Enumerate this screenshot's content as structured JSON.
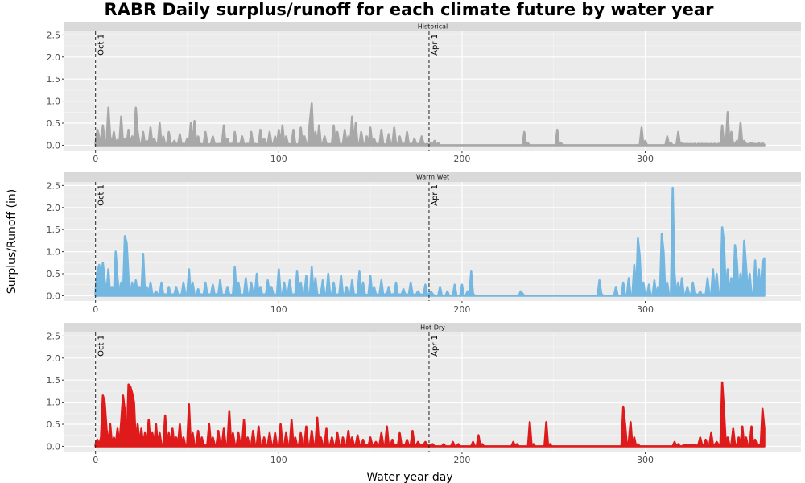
{
  "chart_data": {
    "type": "area",
    "title": "RABR Daily surplus/runoff for each climate future by water year",
    "xlabel": "Water year day",
    "ylabel": "Surplus/Runoff (in)",
    "xlim": [
      -17,
      385
    ],
    "ylim": [
      -0.12,
      2.58
    ],
    "xticks": [
      0,
      100,
      200,
      300
    ],
    "yticks": [
      0.0,
      0.5,
      1.0,
      1.5,
      2.0,
      2.5
    ],
    "ytick_labels": [
      "0.0",
      "0.5",
      "1.0",
      "1.5",
      "2.0",
      "2.5"
    ],
    "grid": true,
    "vlines": [
      {
        "x": 0,
        "label": "Oct 1"
      },
      {
        "x": 182,
        "label": "Apr 1"
      }
    ],
    "panels": [
      {
        "name": "Historical",
        "color": "#a8a8a8",
        "peaks": [
          [
            0,
            0.05
          ],
          [
            1,
            0.35
          ],
          [
            2,
            0.2
          ],
          [
            4,
            0.45
          ],
          [
            5,
            0.1
          ],
          [
            7,
            0.85
          ],
          [
            8,
            0.2
          ],
          [
            10,
            0.3
          ],
          [
            12,
            0.12
          ],
          [
            14,
            0.65
          ],
          [
            16,
            0.15
          ],
          [
            18,
            0.35
          ],
          [
            20,
            0.2
          ],
          [
            22,
            0.85
          ],
          [
            23,
            0.3
          ],
          [
            26,
            0.3
          ],
          [
            28,
            0.1
          ],
          [
            30,
            0.4
          ],
          [
            32,
            0.15
          ],
          [
            35,
            0.5
          ],
          [
            37,
            0.2
          ],
          [
            40,
            0.3
          ],
          [
            43,
            0.1
          ],
          [
            46,
            0.25
          ],
          [
            50,
            0.15
          ],
          [
            52,
            0.5
          ],
          [
            54,
            0.55
          ],
          [
            56,
            0.2
          ],
          [
            60,
            0.3
          ],
          [
            64,
            0.2
          ],
          [
            70,
            0.45
          ],
          [
            72,
            0.15
          ],
          [
            76,
            0.3
          ],
          [
            80,
            0.2
          ],
          [
            85,
            0.3
          ],
          [
            90,
            0.35
          ],
          [
            92,
            0.15
          ],
          [
            95,
            0.3
          ],
          [
            98,
            0.2
          ],
          [
            100,
            0.35
          ],
          [
            102,
            0.45
          ],
          [
            104,
            0.2
          ],
          [
            108,
            0.35
          ],
          [
            112,
            0.4
          ],
          [
            114,
            0.2
          ],
          [
            117,
            0.55
          ],
          [
            118,
            0.95
          ],
          [
            120,
            0.3
          ],
          [
            122,
            0.45
          ],
          [
            125,
            0.2
          ],
          [
            130,
            0.45
          ],
          [
            132,
            0.3
          ],
          [
            136,
            0.35
          ],
          [
            138,
            0.2
          ],
          [
            140,
            0.65
          ],
          [
            142,
            0.5
          ],
          [
            145,
            0.3
          ],
          [
            148,
            0.2
          ],
          [
            150,
            0.4
          ],
          [
            152,
            0.15
          ],
          [
            156,
            0.35
          ],
          [
            160,
            0.25
          ],
          [
            163,
            0.4
          ],
          [
            166,
            0.2
          ],
          [
            170,
            0.3
          ],
          [
            174,
            0.15
          ],
          [
            178,
            0.2
          ],
          [
            183,
            0.05
          ],
          [
            185,
            0.1
          ],
          [
            187,
            0.05
          ],
          [
            234,
            0.3
          ],
          [
            236,
            0.05
          ],
          [
            252,
            0.35
          ],
          [
            254,
            0.05
          ],
          [
            298,
            0.4
          ],
          [
            300,
            0.1
          ],
          [
            312,
            0.2
          ],
          [
            314,
            0.05
          ],
          [
            318,
            0.3
          ],
          [
            320,
            0.05
          ],
          [
            342,
            0.45
          ],
          [
            345,
            0.75
          ],
          [
            347,
            0.3
          ],
          [
            350,
            0.1
          ],
          [
            352,
            0.5
          ],
          [
            354,
            0.1
          ],
          [
            358,
            0.05
          ],
          [
            362,
            0.05
          ],
          [
            364,
            0.05
          ]
        ]
      },
      {
        "name": "Warm Wet",
        "color": "#74b7e0",
        "peaks": [
          [
            0,
            0.1
          ],
          [
            1,
            0.55
          ],
          [
            2,
            0.7
          ],
          [
            3,
            0.4
          ],
          [
            4,
            0.75
          ],
          [
            5,
            0.35
          ],
          [
            7,
            0.6
          ],
          [
            9,
            0.2
          ],
          [
            11,
            1.0
          ],
          [
            12,
            0.4
          ],
          [
            14,
            0.3
          ],
          [
            16,
            1.35
          ],
          [
            17,
            1.2
          ],
          [
            18,
            0.4
          ],
          [
            20,
            0.3
          ],
          [
            22,
            0.35
          ],
          [
            24,
            0.2
          ],
          [
            26,
            0.95
          ],
          [
            28,
            0.2
          ],
          [
            30,
            0.3
          ],
          [
            33,
            0.1
          ],
          [
            36,
            0.3
          ],
          [
            40,
            0.2
          ],
          [
            44,
            0.2
          ],
          [
            48,
            0.3
          ],
          [
            51,
            0.6
          ],
          [
            53,
            0.3
          ],
          [
            56,
            0.15
          ],
          [
            60,
            0.3
          ],
          [
            64,
            0.25
          ],
          [
            68,
            0.35
          ],
          [
            72,
            0.2
          ],
          [
            76,
            0.65
          ],
          [
            78,
            0.3
          ],
          [
            82,
            0.4
          ],
          [
            85,
            0.3
          ],
          [
            88,
            0.5
          ],
          [
            90,
            0.2
          ],
          [
            94,
            0.35
          ],
          [
            96,
            0.2
          ],
          [
            100,
            0.6
          ],
          [
            103,
            0.3
          ],
          [
            106,
            0.35
          ],
          [
            110,
            0.55
          ],
          [
            112,
            0.3
          ],
          [
            115,
            0.45
          ],
          [
            118,
            0.65
          ],
          [
            120,
            0.4
          ],
          [
            124,
            0.35
          ],
          [
            127,
            0.5
          ],
          [
            130,
            0.3
          ],
          [
            134,
            0.45
          ],
          [
            137,
            0.2
          ],
          [
            140,
            0.35
          ],
          [
            144,
            0.55
          ],
          [
            146,
            0.3
          ],
          [
            150,
            0.45
          ],
          [
            152,
            0.2
          ],
          [
            156,
            0.35
          ],
          [
            160,
            0.2
          ],
          [
            164,
            0.3
          ],
          [
            168,
            0.15
          ],
          [
            172,
            0.3
          ],
          [
            176,
            0.1
          ],
          [
            180,
            0.25
          ],
          [
            183,
            0.1
          ],
          [
            188,
            0.2
          ],
          [
            192,
            0.1
          ],
          [
            196,
            0.25
          ],
          [
            200,
            0.25
          ],
          [
            203,
            0.1
          ],
          [
            205,
            0.55
          ],
          [
            206,
            0.05
          ],
          [
            232,
            0.1
          ],
          [
            233,
            0.05
          ],
          [
            275,
            0.35
          ],
          [
            276,
            0.05
          ],
          [
            284,
            0.2
          ],
          [
            288,
            0.3
          ],
          [
            291,
            0.4
          ],
          [
            294,
            0.7
          ],
          [
            296,
            1.3
          ],
          [
            297,
            0.9
          ],
          [
            299,
            0.3
          ],
          [
            302,
            0.25
          ],
          [
            305,
            0.35
          ],
          [
            307,
            0.2
          ],
          [
            309,
            1.4
          ],
          [
            310,
            1.0
          ],
          [
            312,
            0.3
          ],
          [
            315,
            2.45
          ],
          [
            316,
            0.5
          ],
          [
            318,
            0.3
          ],
          [
            320,
            0.4
          ],
          [
            323,
            0.2
          ],
          [
            326,
            0.3
          ],
          [
            330,
            0.1
          ],
          [
            334,
            0.4
          ],
          [
            337,
            0.6
          ],
          [
            339,
            0.5
          ],
          [
            342,
            1.55
          ],
          [
            343,
            1.2
          ],
          [
            345,
            0.6
          ],
          [
            347,
            0.4
          ],
          [
            349,
            1.15
          ],
          [
            350,
            0.8
          ],
          [
            352,
            0.5
          ],
          [
            354,
            1.25
          ],
          [
            355,
            0.7
          ],
          [
            357,
            0.5
          ],
          [
            360,
            0.8
          ],
          [
            362,
            0.6
          ],
          [
            364,
            0.75
          ],
          [
            365,
            0.85
          ]
        ]
      },
      {
        "name": "Hot Dry",
        "color": "#de1a1a",
        "peaks": [
          [
            0,
            0.05
          ],
          [
            1,
            0.15
          ],
          [
            3,
            0.2
          ],
          [
            4,
            1.15
          ],
          [
            5,
            1.0
          ],
          [
            6,
            0.4
          ],
          [
            8,
            0.5
          ],
          [
            10,
            0.2
          ],
          [
            12,
            0.4
          ],
          [
            14,
            0.55
          ],
          [
            15,
            1.15
          ],
          [
            16,
            0.8
          ],
          [
            18,
            1.4
          ],
          [
            19,
            1.35
          ],
          [
            20,
            1.2
          ],
          [
            21,
            1.0
          ],
          [
            23,
            0.5
          ],
          [
            25,
            0.4
          ],
          [
            27,
            0.3
          ],
          [
            29,
            0.6
          ],
          [
            31,
            0.3
          ],
          [
            33,
            0.5
          ],
          [
            35,
            0.3
          ],
          [
            38,
            0.7
          ],
          [
            40,
            0.3
          ],
          [
            42,
            0.4
          ],
          [
            44,
            0.2
          ],
          [
            46,
            0.5
          ],
          [
            48,
            0.2
          ],
          [
            51,
            0.95
          ],
          [
            53,
            0.3
          ],
          [
            56,
            0.35
          ],
          [
            58,
            0.2
          ],
          [
            62,
            0.5
          ],
          [
            64,
            0.2
          ],
          [
            67,
            0.35
          ],
          [
            70,
            0.4
          ],
          [
            73,
            0.8
          ],
          [
            75,
            0.3
          ],
          [
            78,
            0.3
          ],
          [
            81,
            0.6
          ],
          [
            83,
            0.2
          ],
          [
            86,
            0.35
          ],
          [
            89,
            0.45
          ],
          [
            92,
            0.2
          ],
          [
            95,
            0.3
          ],
          [
            98,
            0.3
          ],
          [
            101,
            0.5
          ],
          [
            104,
            0.3
          ],
          [
            107,
            0.6
          ],
          [
            109,
            0.2
          ],
          [
            112,
            0.3
          ],
          [
            115,
            0.45
          ],
          [
            118,
            0.35
          ],
          [
            121,
            0.65
          ],
          [
            123,
            0.2
          ],
          [
            126,
            0.4
          ],
          [
            129,
            0.2
          ],
          [
            132,
            0.3
          ],
          [
            135,
            0.2
          ],
          [
            138,
            0.35
          ],
          [
            140,
            0.2
          ],
          [
            143,
            0.25
          ],
          [
            146,
            0.15
          ],
          [
            150,
            0.2
          ],
          [
            153,
            0.1
          ],
          [
            156,
            0.3
          ],
          [
            159,
            0.45
          ],
          [
            162,
            0.15
          ],
          [
            166,
            0.3
          ],
          [
            170,
            0.15
          ],
          [
            173,
            0.35
          ],
          [
            176,
            0.1
          ],
          [
            180,
            0.1
          ],
          [
            184,
            0.05
          ],
          [
            190,
            0.05
          ],
          [
            195,
            0.1
          ],
          [
            198,
            0.05
          ],
          [
            206,
            0.1
          ],
          [
            209,
            0.25
          ],
          [
            211,
            0.05
          ],
          [
            228,
            0.1
          ],
          [
            230,
            0.05
          ],
          [
            237,
            0.55
          ],
          [
            239,
            0.05
          ],
          [
            246,
            0.55
          ],
          [
            248,
            0.05
          ],
          [
            288,
            0.9
          ],
          [
            289,
            0.5
          ],
          [
            291,
            0.1
          ],
          [
            292,
            0.55
          ],
          [
            294,
            0.2
          ],
          [
            296,
            0.05
          ],
          [
            316,
            0.1
          ],
          [
            318,
            0.05
          ],
          [
            330,
            0.2
          ],
          [
            333,
            0.15
          ],
          [
            336,
            0.3
          ],
          [
            339,
            0.1
          ],
          [
            342,
            1.45
          ],
          [
            343,
            0.8
          ],
          [
            345,
            0.2
          ],
          [
            348,
            0.4
          ],
          [
            351,
            0.2
          ],
          [
            353,
            0.45
          ],
          [
            355,
            0.2
          ],
          [
            358,
            0.45
          ],
          [
            360,
            0.15
          ],
          [
            364,
            0.85
          ],
          [
            365,
            0.4
          ]
        ]
      }
    ]
  }
}
